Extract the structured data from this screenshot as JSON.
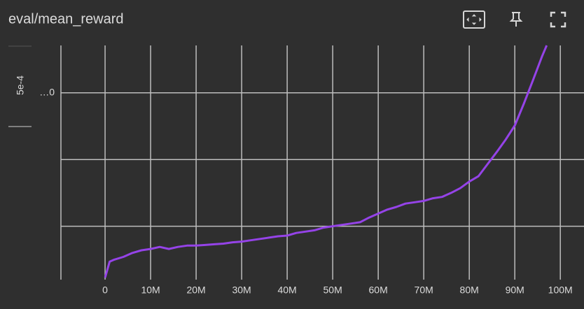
{
  "chart_data": {
    "type": "line",
    "title": "eval/mean_reward",
    "y_label": "5e-4",
    "x": [
      0,
      1000000,
      2000000,
      4000000,
      6000000,
      8000000,
      10000000,
      12000000,
      14000000,
      16000000,
      18000000,
      20000000,
      22000000,
      24000000,
      26000000,
      28000000,
      30000000,
      32000000,
      34000000,
      36000000,
      38000000,
      40000000,
      42000000,
      44000000,
      46000000,
      48000000,
      50000000,
      52000000,
      54000000,
      56000000,
      58000000,
      60000000,
      62000000,
      64000000,
      66000000,
      68000000,
      70000000,
      72000000,
      74000000,
      76000000,
      78000000,
      80000000,
      82000000,
      84000000,
      86000000,
      88000000,
      90000000,
      92000000,
      94000000,
      96000000,
      97000000
    ],
    "series": [
      {
        "color": "#9543e8",
        "values": [
          -2.77,
          -2.53,
          -2.5,
          -2.46,
          -2.4,
          -2.36,
          -2.34,
          -2.31,
          -2.34,
          -2.31,
          -2.29,
          -2.29,
          -2.28,
          -2.27,
          -2.26,
          -2.24,
          -2.23,
          -2.21,
          -2.19,
          -2.17,
          -2.15,
          -2.14,
          -2.1,
          -2.08,
          -2.06,
          -2.02,
          -2.0,
          -1.98,
          -1.96,
          -1.94,
          -1.87,
          -1.81,
          -1.75,
          -1.71,
          -1.66,
          -1.64,
          -1.62,
          -1.58,
          -1.56,
          -1.5,
          -1.43,
          -1.33,
          -1.25,
          -1.07,
          -0.89,
          -0.7,
          -0.49,
          -0.16,
          0.19,
          0.55,
          0.71
        ]
      }
    ],
    "xlim": [
      -9700000,
      105200000
    ],
    "xticks": [
      0,
      {
        "value": 10000000,
        "label": "10M"
      },
      {
        "value": 20000000,
        "label": "20M"
      },
      {
        "value": 30000000,
        "label": "30M"
      },
      {
        "value": 40000000,
        "label": "40M"
      },
      {
        "value": 50000000,
        "label": "50M"
      },
      {
        "value": 60000000,
        "label": "60M"
      },
      {
        "value": 70000000,
        "label": "70M"
      },
      {
        "value": 80000000,
        "label": "80M"
      },
      {
        "value": 90000000,
        "label": "90M"
      },
      {
        "value": 100000000,
        "label": "100M"
      }
    ],
    "ylim": [
      -2.8,
      0.71
    ],
    "yticks": [
      {
        "value": 0,
        "label": "…0"
      }
    ],
    "ygrid": [
      0,
      -1,
      -2
    ],
    "grid": true
  }
}
